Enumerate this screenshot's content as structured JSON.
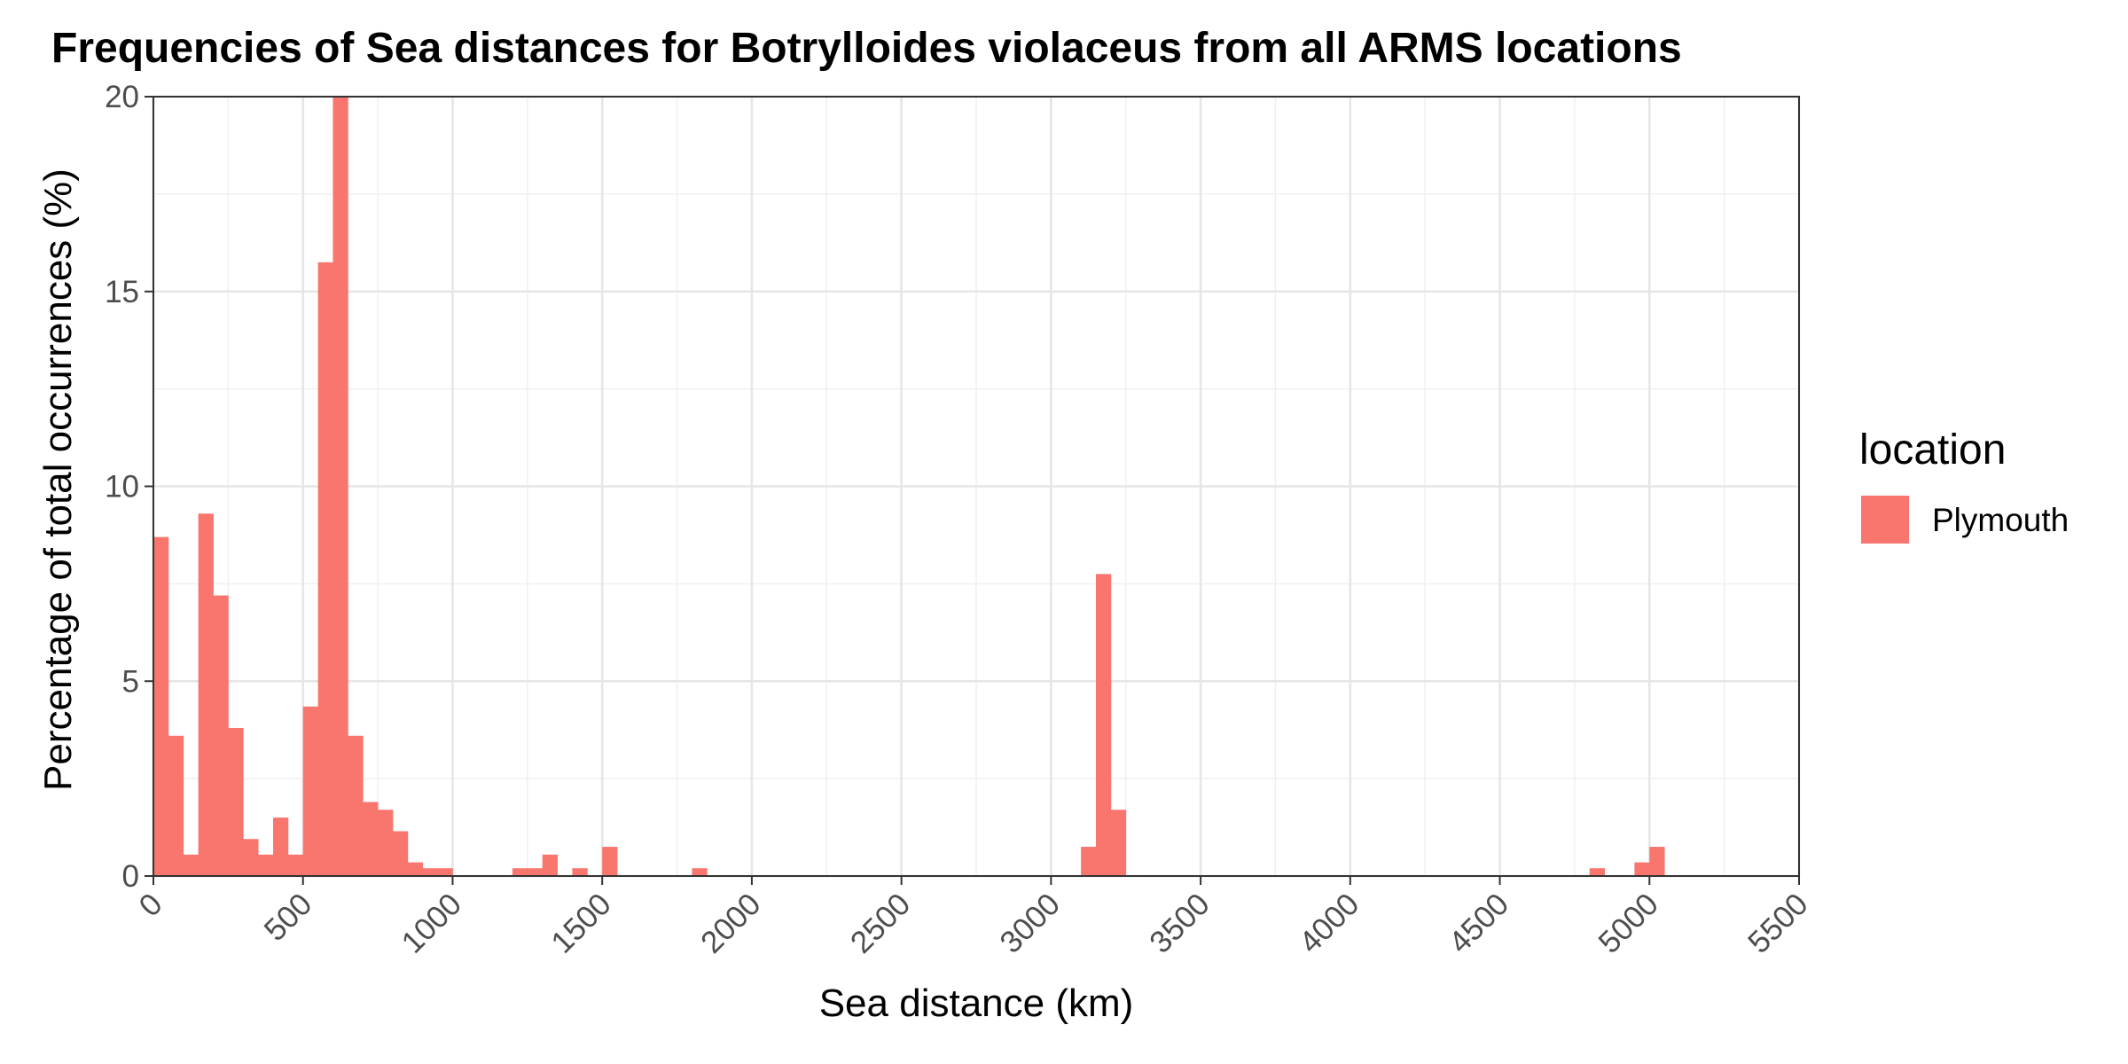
{
  "chart_data": {
    "type": "bar",
    "title": "Frequencies of Sea distances for Botrylloides violaceus from all ARMS locations",
    "xlabel": "Sea distance (km)",
    "ylabel": "Percentage of total occurrences (%)",
    "xlim": [
      0,
      5500
    ],
    "ylim": [
      0,
      20
    ],
    "x_ticks": [
      0,
      500,
      1000,
      1500,
      2000,
      2500,
      3000,
      3500,
      4000,
      4500,
      5000,
      5500
    ],
    "y_ticks": [
      0,
      5,
      10,
      15,
      20
    ],
    "bin_width": 50,
    "grid": true,
    "legend_position": "right",
    "legend_title": "location",
    "series": [
      {
        "name": "Plymouth",
        "color": "#F8766D",
        "bins": [
          {
            "x": 0,
            "y": 8.7
          },
          {
            "x": 50,
            "y": 3.6
          },
          {
            "x": 100,
            "y": 0.55
          },
          {
            "x": 150,
            "y": 9.3
          },
          {
            "x": 200,
            "y": 7.2
          },
          {
            "x": 250,
            "y": 3.8
          },
          {
            "x": 300,
            "y": 0.95
          },
          {
            "x": 350,
            "y": 0.55
          },
          {
            "x": 400,
            "y": 1.5
          },
          {
            "x": 450,
            "y": 0.55
          },
          {
            "x": 500,
            "y": 4.35
          },
          {
            "x": 550,
            "y": 15.75
          },
          {
            "x": 600,
            "y": 20.0
          },
          {
            "x": 650,
            "y": 3.6
          },
          {
            "x": 700,
            "y": 1.9
          },
          {
            "x": 750,
            "y": 1.7
          },
          {
            "x": 800,
            "y": 1.15
          },
          {
            "x": 850,
            "y": 0.35
          },
          {
            "x": 900,
            "y": 0.2
          },
          {
            "x": 950,
            "y": 0.2
          },
          {
            "x": 1200,
            "y": 0.2
          },
          {
            "x": 1250,
            "y": 0.2
          },
          {
            "x": 1300,
            "y": 0.55
          },
          {
            "x": 1400,
            "y": 0.2
          },
          {
            "x": 1500,
            "y": 0.75
          },
          {
            "x": 1800,
            "y": 0.2
          },
          {
            "x": 3100,
            "y": 0.75
          },
          {
            "x": 3150,
            "y": 7.75
          },
          {
            "x": 3200,
            "y": 1.7
          },
          {
            "x": 4800,
            "y": 0.2
          },
          {
            "x": 4950,
            "y": 0.35
          },
          {
            "x": 5000,
            "y": 0.75
          }
        ]
      }
    ]
  }
}
